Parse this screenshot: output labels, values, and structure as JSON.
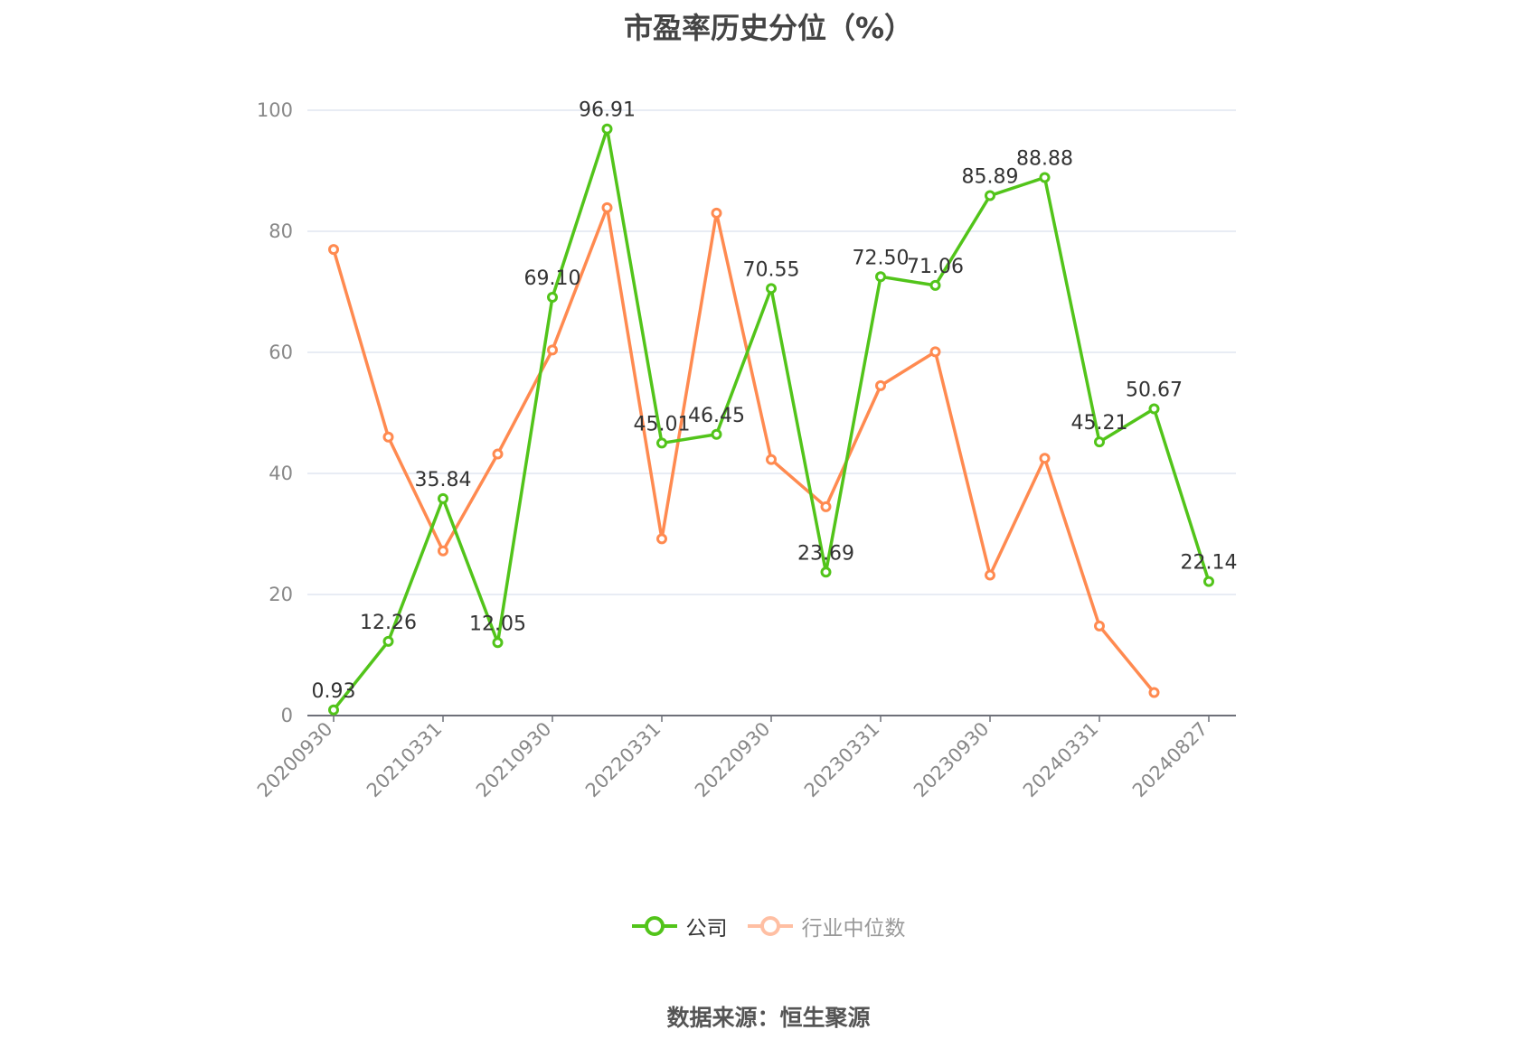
{
  "title": "市盈率历史分位（%）",
  "source": "数据来源：恒生聚源",
  "legend": [
    {
      "label": "公司",
      "color": "#52c41a",
      "active": true
    },
    {
      "label": "行业中位数",
      "color": "#ff8c5a",
      "active": false
    }
  ],
  "colors": {
    "company": "#52c41a",
    "industry": "#ff8a50",
    "grid": "#e0e6f1",
    "axis": "#6e7079"
  },
  "chart_data": {
    "type": "line",
    "title": "市盈率历史分位（%）",
    "xlabel": "",
    "ylabel": "",
    "ylim": [
      0,
      100
    ],
    "yticks": [
      0,
      20,
      40,
      60,
      80,
      100
    ],
    "grid": true,
    "legend_position": "bottom",
    "x": [
      "20200930",
      "20201231",
      "20210331",
      "20210630",
      "20210930",
      "20211231",
      "20220331",
      "20220630",
      "20220930",
      "20221231",
      "20230331",
      "20230630",
      "20230930",
      "20231231",
      "20240331",
      "20240630",
      "20240827"
    ],
    "xtick_labels": [
      "20200930",
      "20210331",
      "20210930",
      "20220331",
      "20220930",
      "20230331",
      "20230930",
      "20240331",
      "20240827"
    ],
    "series": [
      {
        "name": "公司",
        "values": [
          0.93,
          12.26,
          35.84,
          12.05,
          69.1,
          96.91,
          45.01,
          46.45,
          70.55,
          23.69,
          72.5,
          71.06,
          85.89,
          88.88,
          45.21,
          50.67,
          22.14
        ],
        "labels": [
          "0.93",
          "12.26",
          "35.84",
          "12.05",
          "69.10",
          "96.91",
          "45.01",
          "46.45",
          "70.55",
          "23.69",
          "72.50",
          "71.06",
          "85.89",
          "88.88",
          "45.21",
          "50.67",
          "22.14"
        ]
      },
      {
        "name": "行业中位数",
        "values": [
          77.0,
          46.0,
          27.2,
          43.2,
          60.4,
          83.9,
          29.2,
          83.0,
          42.3,
          34.5,
          54.5,
          60.1,
          23.2,
          42.5,
          14.8,
          3.8,
          null
        ]
      }
    ],
    "source": "数据来源：恒生聚源"
  }
}
